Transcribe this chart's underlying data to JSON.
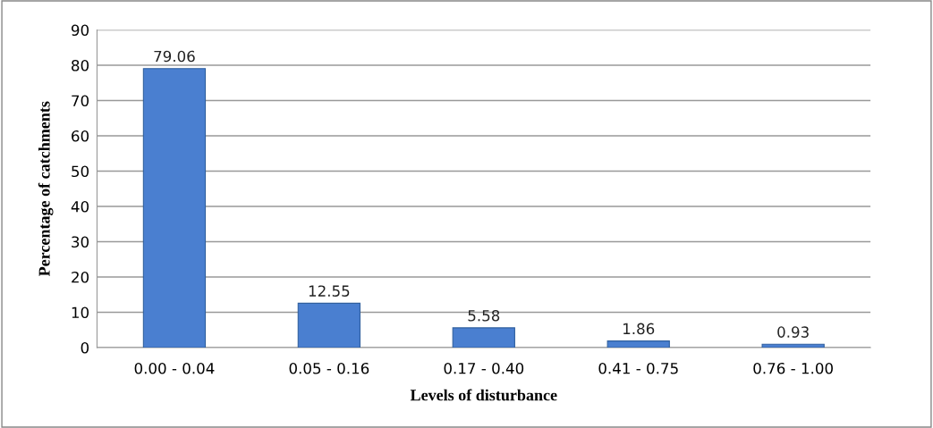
{
  "chart_data": {
    "type": "bar",
    "xlabel": "Levels of disturbance",
    "ylabel": "Percentage of catchments",
    "categories": [
      "0.00 - 0.04",
      "0.05 - 0.16",
      "0.17 - 0.40",
      "0.41 - 0.75",
      "0.76 - 1.00"
    ],
    "values": [
      79.06,
      12.55,
      5.58,
      1.86,
      0.93
    ],
    "color": "#4a7fd0",
    "ylim": [
      0,
      90
    ],
    "yticks": [
      0,
      10,
      20,
      30,
      40,
      50,
      60,
      70,
      80,
      90
    ],
    "grid": "y",
    "data_labels": true
  }
}
